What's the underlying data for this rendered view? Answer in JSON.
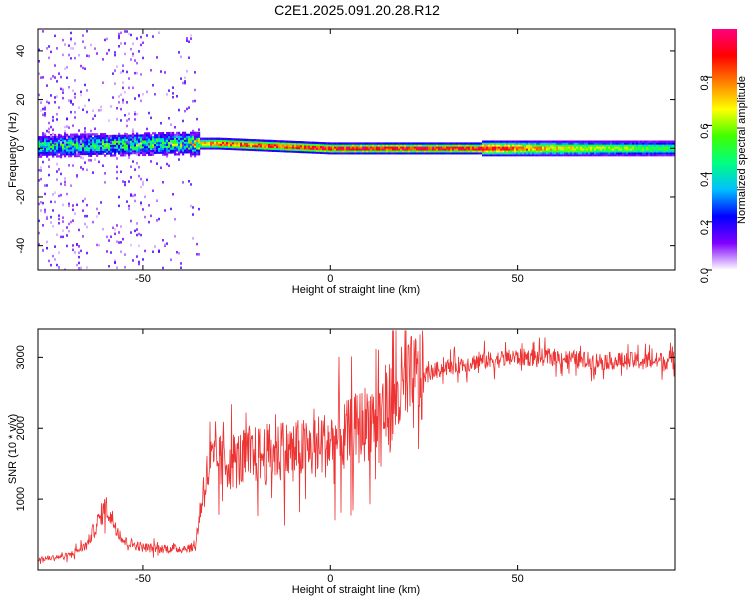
{
  "title": "C2E1.2025.091.20.28.R12",
  "chart_data": [
    {
      "type": "heatmap",
      "xlabel": "Height of straight line (km)",
      "ylabel": "Frequency (Hz)",
      "xlim": [
        -78,
        92
      ],
      "ylim": [
        -50,
        49
      ],
      "xticks": [
        -50,
        0,
        50
      ],
      "xtick_labels": [
        "-50",
        "0",
        "50"
      ],
      "yticks": [
        -40,
        -20,
        0,
        20,
        40
      ],
      "ytick_labels": [
        "-40",
        "-20",
        "0",
        "20",
        "40"
      ],
      "colorbar": {
        "label": "Normalized spectral amplitude",
        "range": [
          0,
          1
        ],
        "ticks": [
          0.0,
          0.2,
          0.4,
          0.6,
          0.8
        ],
        "tick_labels": [
          "0.0",
          "0.2",
          "0.4",
          "0.6",
          "0.8"
        ],
        "colors": [
          "#ffffff",
          "#8000ff",
          "#0000ff",
          "#00c0ff",
          "#00ff80",
          "#40ff00",
          "#ffff00",
          "#ff8000",
          "#ff0000",
          "#ff0080"
        ]
      },
      "ridge": {
        "x_start": -78,
        "x_end": 92,
        "center_freq": [
          [
            -78,
            1
          ],
          [
            -40,
            2
          ],
          [
            -30,
            2
          ],
          [
            0,
            0
          ],
          [
            40,
            0
          ],
          [
            92,
            0
          ]
        ],
        "peak_amplitude": [
          [
            -78,
            0.45
          ],
          [
            -40,
            0.55
          ],
          [
            -30,
            0.85
          ],
          [
            -10,
            0.9
          ],
          [
            10,
            0.95
          ],
          [
            40,
            0.95
          ],
          [
            60,
            0.7
          ],
          [
            92,
            0.5
          ]
        ]
      }
    },
    {
      "type": "line",
      "xlabel": "Height of straight line (km)",
      "ylabel": "SNR (10 * v/v)",
      "xlim": [
        -78,
        92
      ],
      "ylim": [
        0,
        3400
      ],
      "xticks": [
        -50,
        0,
        50
      ],
      "xtick_labels": [
        "-50",
        "0",
        "50"
      ],
      "yticks": [
        1000,
        2000,
        3000
      ],
      "ytick_labels": [
        "1000",
        "2000",
        "3000"
      ],
      "line_color": "#ee3333",
      "trend": {
        "x": [
          -78,
          -70,
          -65,
          -60,
          -58,
          -55,
          -50,
          -45,
          -40,
          -36,
          -34,
          -32,
          -25,
          -15,
          -5,
          5,
          10,
          15,
          20,
          25,
          30,
          40,
          50,
          60,
          70,
          80,
          92
        ],
        "y": [
          150,
          200,
          350,
          900,
          700,
          400,
          320,
          300,
          300,
          320,
          1100,
          1500,
          1550,
          1650,
          1700,
          1900,
          2100,
          2300,
          2550,
          2750,
          2850,
          2950,
          3000,
          3000,
          2950,
          2950,
          2950
        ]
      }
    }
  ]
}
